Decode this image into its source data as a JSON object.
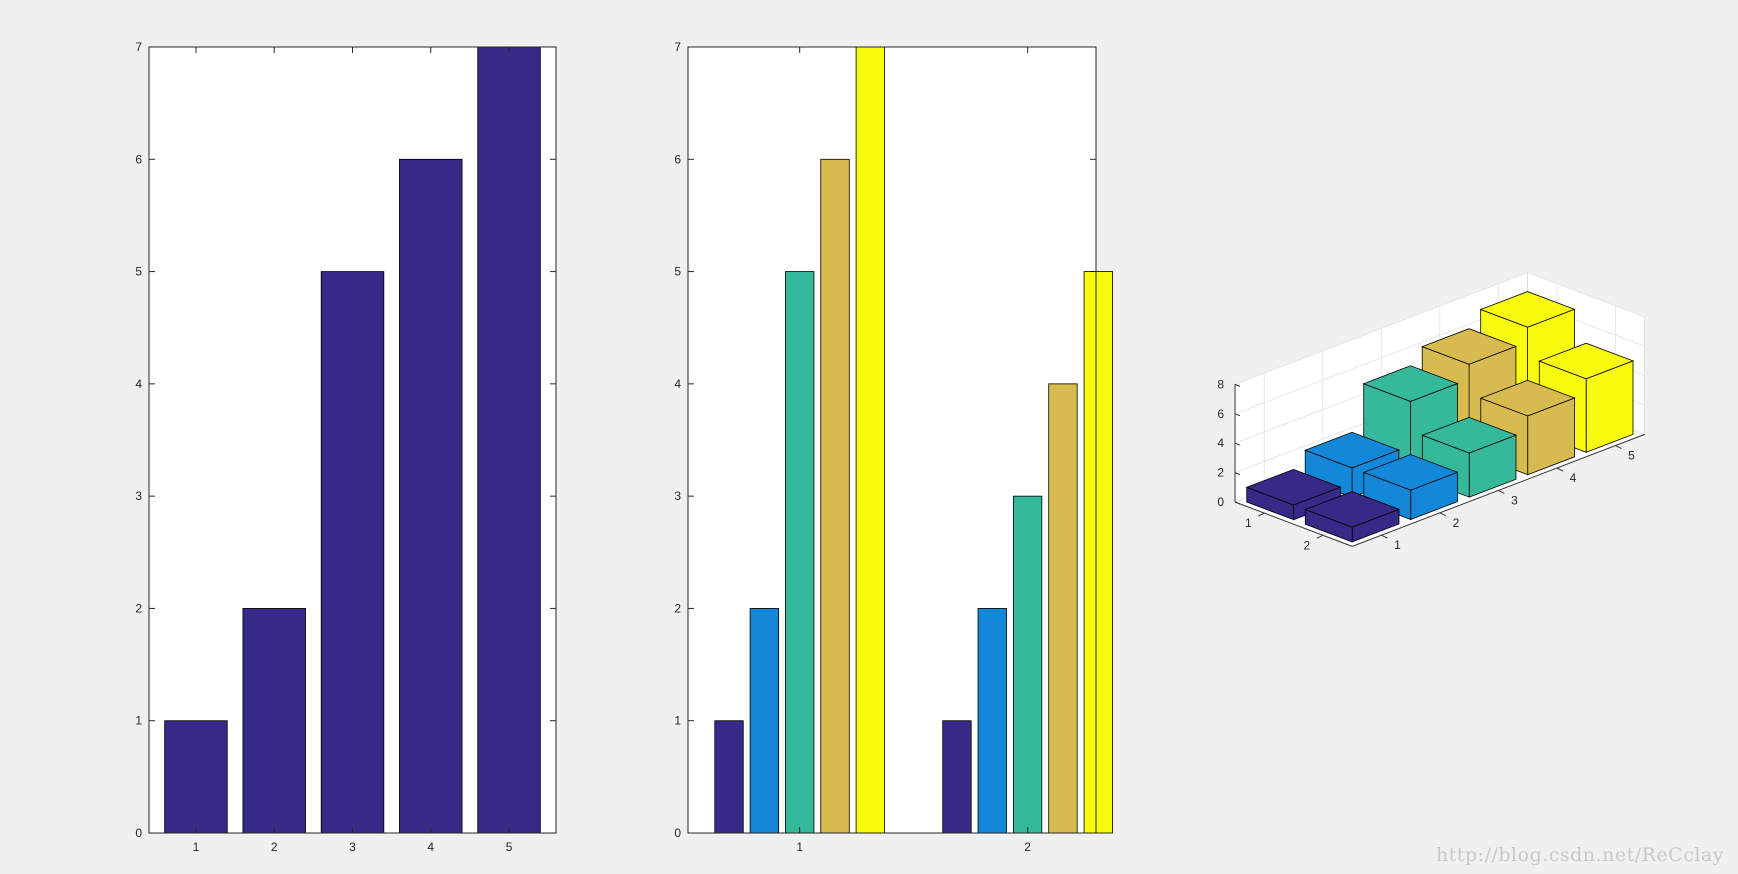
{
  "watermark": "http://blog.csdn.net/ReCclay",
  "colors": {
    "background": "#f0f0f0",
    "axes_bg": "#ffffff",
    "axis_line": "#262626",
    "grid": "#e6e6e6",
    "bar_edge": "#000000",
    "palette": [
      "#352a87",
      "#1488d8",
      "#35b99a",
      "#d7bb4e",
      "#f9fb0e"
    ]
  },
  "chart_data": [
    {
      "type": "bar",
      "categories": [
        "1",
        "2",
        "3",
        "4",
        "5"
      ],
      "values": [
        1,
        2,
        5,
        6,
        7
      ],
      "ylim": [
        0,
        7
      ],
      "yticks": [
        0,
        1,
        2,
        3,
        4,
        5,
        6,
        7
      ],
      "color": "#352a87",
      "grid": false
    },
    {
      "type": "bar",
      "grouped": true,
      "categories": [
        "1",
        "2"
      ],
      "series": [
        {
          "values": [
            1,
            1
          ],
          "color": "#352a87"
        },
        {
          "values": [
            2,
            2
          ],
          "color": "#1488d8"
        },
        {
          "values": [
            5,
            3
          ],
          "color": "#35b99a"
        },
        {
          "values": [
            6,
            4
          ],
          "color": "#d7bb4e"
        },
        {
          "values": [
            7,
            5
          ],
          "color": "#f9fb0e"
        }
      ],
      "ylim": [
        0,
        7
      ],
      "yticks": [
        0,
        1,
        2,
        3,
        4,
        5,
        6,
        7
      ],
      "grid": false
    },
    {
      "type": "bar3",
      "rows": [
        "1",
        "2"
      ],
      "columns": [
        "1",
        "2",
        "3",
        "4",
        "5"
      ],
      "values": [
        [
          1,
          2,
          5,
          6,
          7
        ],
        [
          1,
          2,
          3,
          4,
          5
        ]
      ],
      "zlim": [
        0,
        8
      ],
      "zticks": [
        0,
        2,
        4,
        6,
        8
      ],
      "grid": true
    }
  ]
}
